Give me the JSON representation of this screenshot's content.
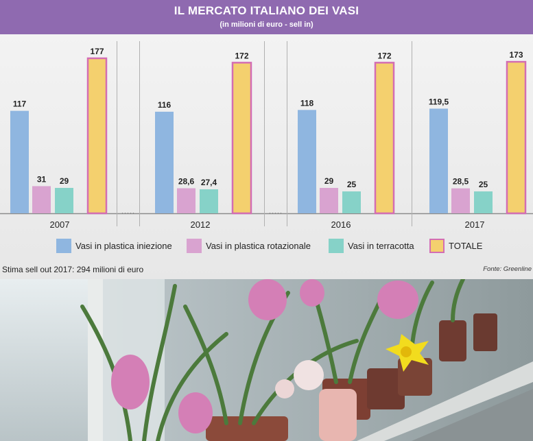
{
  "header": {
    "title": "IL MERCATO ITALIANO DEI VASI",
    "subtitle": "(in milioni di euro - sell in)"
  },
  "chart_data": {
    "type": "bar",
    "title": "IL MERCATO ITALIANO DEI VASI",
    "subtitle": "(in milioni di euro - sell in)",
    "categories": [
      "2007",
      "2012",
      "2016",
      "2017"
    ],
    "series": [
      {
        "name": "Vasi in plastica iniezione",
        "values": [
          117,
          116,
          118,
          119.5
        ],
        "labels": [
          "117",
          "116",
          "118",
          "119,5"
        ],
        "color": "#8fb6e0"
      },
      {
        "name": "Vasi in plastica rotazionale",
        "values": [
          31,
          28.6,
          29,
          28.5
        ],
        "labels": [
          "31",
          "28,6",
          "29",
          "28,5"
        ],
        "color": "#d9a3d0"
      },
      {
        "name": "Vasi in terracotta",
        "values": [
          29,
          27.4,
          25,
          25
        ],
        "labels": [
          "29",
          "27,4",
          "25",
          "25"
        ],
        "color": "#86d2c8"
      },
      {
        "name": "TOTALE",
        "values": [
          177,
          172,
          172,
          173
        ],
        "labels": [
          "177",
          "172",
          "172",
          "173"
        ],
        "color": "#f4d06e",
        "border": "#d36db3"
      }
    ],
    "ylim": [
      0,
      177
    ],
    "grid": false,
    "legend": "bottom"
  },
  "note": "Stima sell out 2017: 294 milioni di euro",
  "source": "Fonte: Greenline",
  "photo": {
    "description_icons": [
      "hyacinth-plant",
      "daffodil-plant",
      "terracotta-pots",
      "window"
    ]
  }
}
